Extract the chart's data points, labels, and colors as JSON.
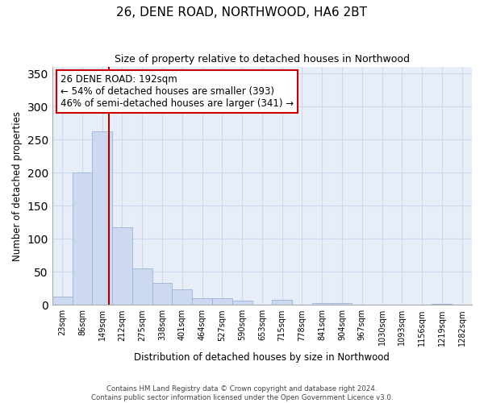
{
  "title": "26, DENE ROAD, NORTHWOOD, HA6 2BT",
  "subtitle": "Size of property relative to detached houses in Northwood",
  "xlabel": "Distribution of detached houses by size in Northwood",
  "ylabel": "Number of detached properties",
  "bar_labels": [
    "23sqm",
    "86sqm",
    "149sqm",
    "212sqm",
    "275sqm",
    "338sqm",
    "401sqm",
    "464sqm",
    "527sqm",
    "590sqm",
    "653sqm",
    "715sqm",
    "778sqm",
    "841sqm",
    "904sqm",
    "967sqm",
    "1030sqm",
    "1093sqm",
    "1156sqm",
    "1219sqm",
    "1282sqm"
  ],
  "bar_values": [
    13,
    200,
    262,
    118,
    55,
    33,
    24,
    10,
    10,
    6,
    0,
    8,
    0,
    3,
    3,
    0,
    0,
    0,
    0,
    2,
    0
  ],
  "bar_color": "#ccd9f0",
  "bar_edge_color": "#99b3d9",
  "vline_x_index": 2,
  "vline_x_offset": 0.35,
  "vline_color": "#aa0000",
  "ylim": [
    0,
    360
  ],
  "yticks": [
    0,
    50,
    100,
    150,
    200,
    250,
    300,
    350
  ],
  "annotation_text": "26 DENE ROAD: 192sqm\n← 54% of detached houses are smaller (393)\n46% of semi-detached houses are larger (341) →",
  "annotation_box_color": "#ffffff",
  "annotation_box_edge_color": "#cc0000",
  "grid_color": "#ccd9ef",
  "bg_color": "#e8eef8",
  "footnote1": "Contains HM Land Registry data © Crown copyright and database right 2024.",
  "footnote2": "Contains public sector information licensed under the Open Government Licence v3.0."
}
